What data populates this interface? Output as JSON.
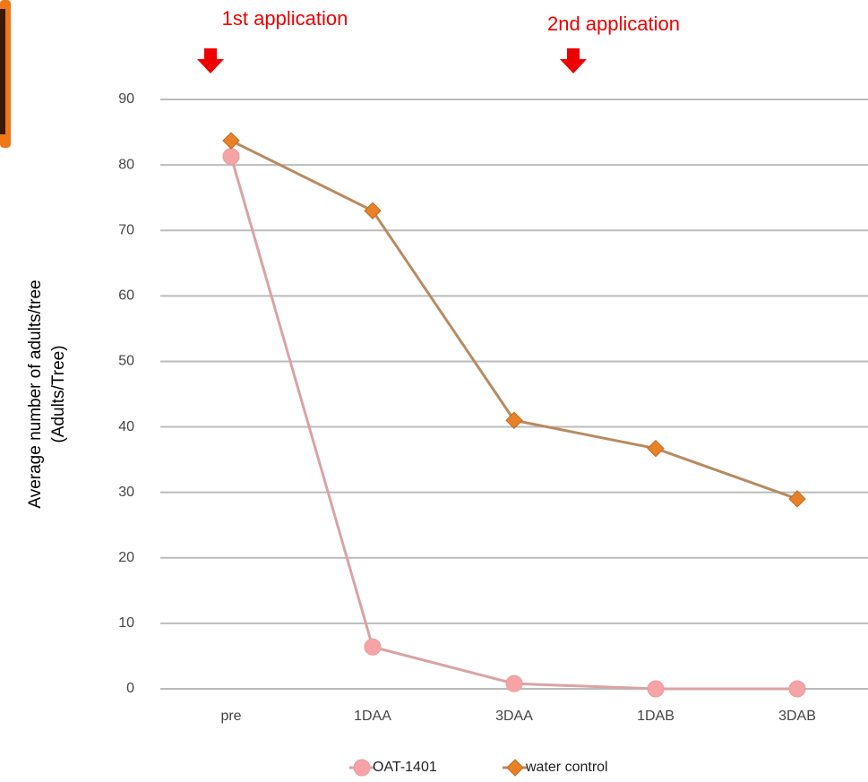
{
  "chart_data": {
    "type": "line",
    "annotations": [
      "1st application",
      "2nd application"
    ],
    "ylabel": [
      "Average number of adults/tree",
      "(Adults/Tree)"
    ],
    "categories": [
      "pre",
      "1DAA",
      "3DAA",
      "1DAB",
      "3DAB"
    ],
    "series": [
      {
        "name": "OAT-1401",
        "color": "#f7a3a6",
        "marker": "circle",
        "values": [
          81.3,
          6.4,
          0.8,
          0,
          0
        ]
      },
      {
        "name": "water control",
        "color": "#e8822a",
        "marker": "diamond",
        "values": [
          83.7,
          73,
          41,
          36.7,
          29
        ]
      }
    ],
    "ylim": [
      0,
      90
    ],
    "yticks": [
      0,
      10,
      20,
      30,
      40,
      50,
      60,
      70,
      80,
      90
    ],
    "grid": true
  }
}
